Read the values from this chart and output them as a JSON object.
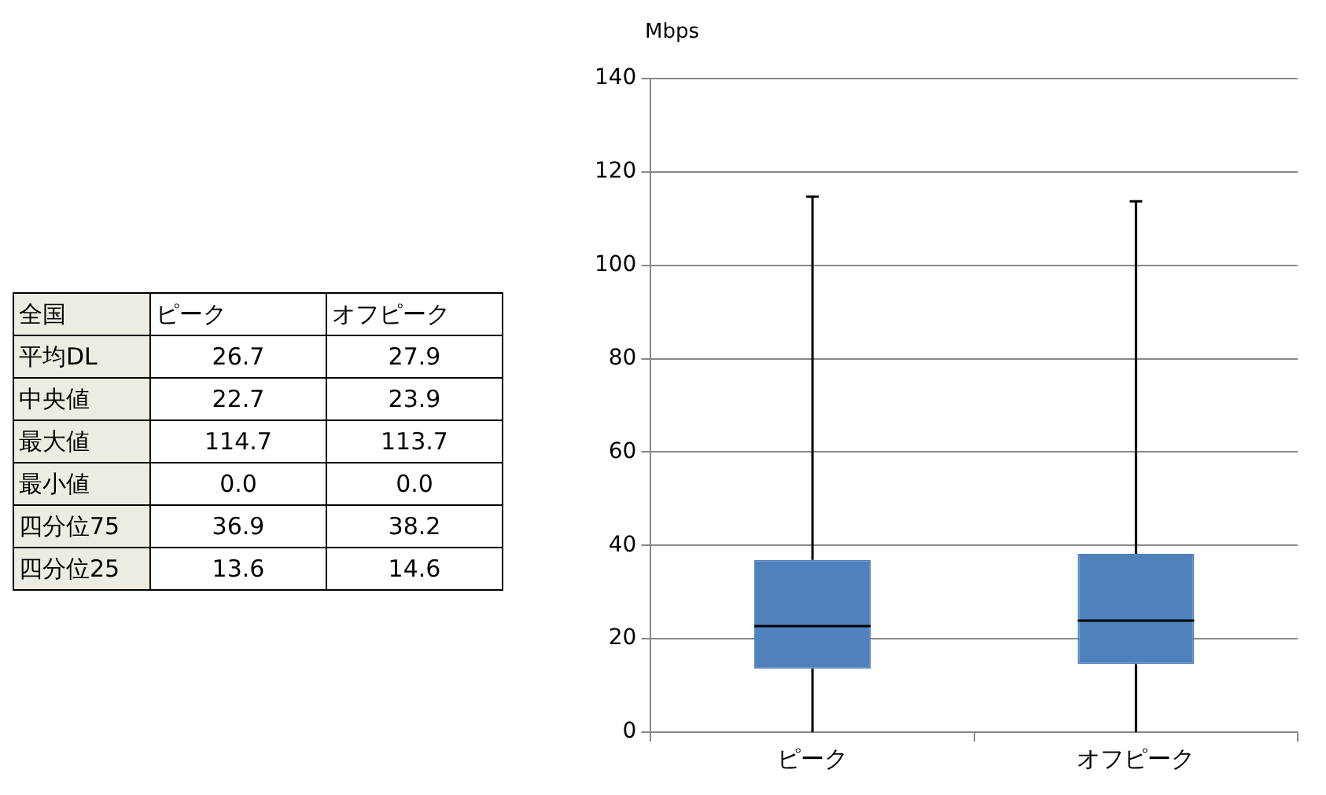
{
  "chart_data": [
    {
      "type": "heatmap",
      "data_labels": true,
      "title": "全国",
      "categories": [
        "ピーク",
        "オフピーク"
      ],
      "y_categories": [
        "平均DL",
        "中央値",
        "最大値",
        "最小値",
        "四分位75",
        "四分位25"
      ],
      "cells": [
        [
          26.7,
          27.9
        ],
        [
          22.7,
          23.9
        ],
        [
          114.7,
          113.7
        ],
        [
          0.0,
          0.0
        ],
        [
          36.9,
          38.2
        ],
        [
          13.6,
          14.6
        ]
      ],
      "cell_labels": [
        [
          "26.7",
          "27.9"
        ],
        [
          "22.7",
          "23.9"
        ],
        [
          "114.7",
          "113.7"
        ],
        [
          "0.0",
          "0.0"
        ],
        [
          "36.9",
          "38.2"
        ],
        [
          "13.6",
          "14.6"
        ]
      ]
    },
    {
      "type": "box",
      "ylabel": "Mbps",
      "categories": [
        "ピーク",
        "オフピーク"
      ],
      "color": "#4f81bd",
      "boxes": [
        {
          "low": 0.0,
          "q1": 13.6,
          "median": 22.7,
          "q3": 36.9,
          "high": 114.7
        },
        {
          "low": 0.0,
          "q1": 14.6,
          "median": 23.9,
          "q3": 38.2,
          "high": 113.7
        }
      ],
      "ylim": [
        0,
        140
      ],
      "yticks": [
        0,
        20,
        40,
        60,
        80,
        100,
        120,
        140
      ],
      "grid": "y"
    }
  ]
}
